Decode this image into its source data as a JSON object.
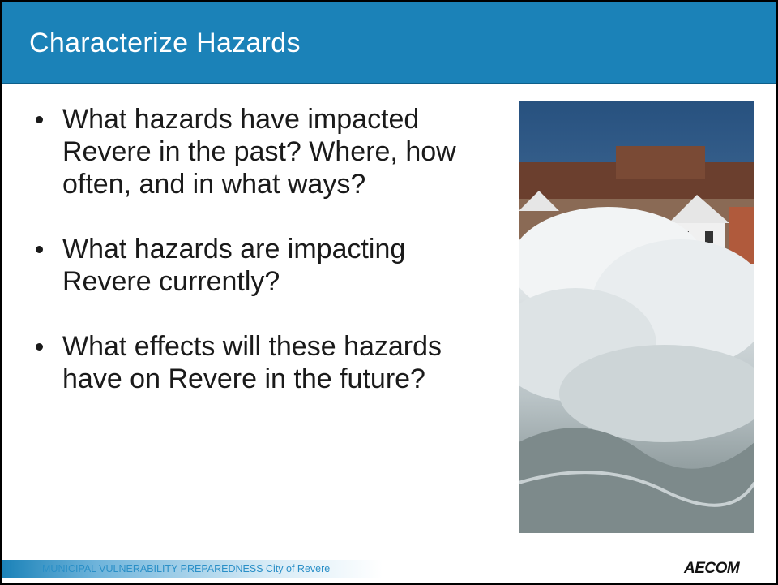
{
  "header": {
    "title": "Characterize Hazards"
  },
  "bullets": [
    "What hazards have impacted Revere in the past? Where, how often, and in what ways?",
    "What hazards are impacting Revere currently?",
    "What effects will these hazards have on Revere in the future?"
  ],
  "footer": {
    "program": "MUNICIPAL VULNERABILITY PREPAREDNESS",
    "city": "City of Revere",
    "logo": "AECOM"
  }
}
